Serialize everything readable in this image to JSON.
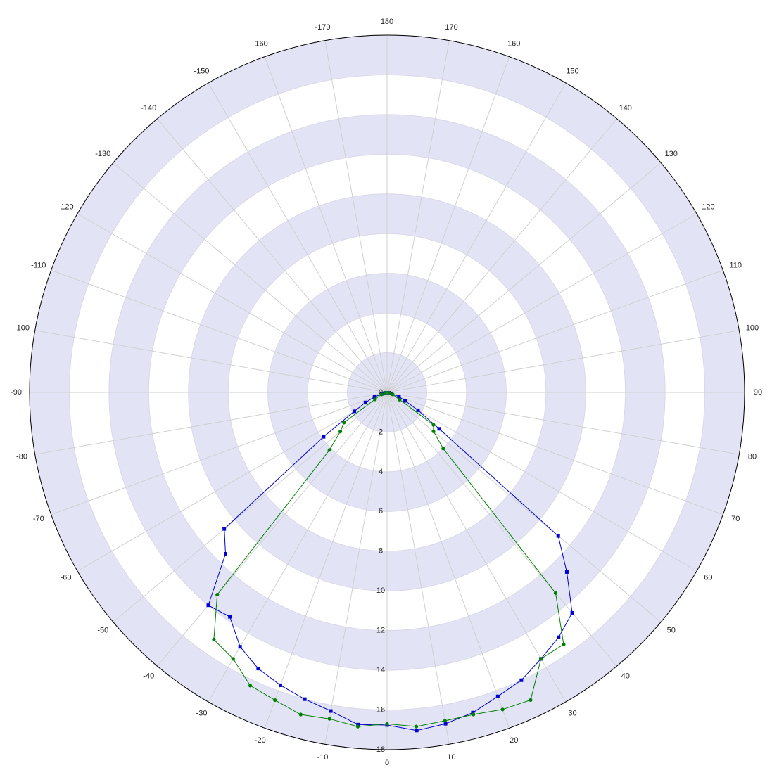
{
  "chart_data": {
    "type": "polar",
    "rlim": [
      0,
      18
    ],
    "rticks": [
      0,
      2,
      4,
      6,
      8,
      10,
      12,
      14,
      16,
      18
    ],
    "thetaticks": [
      -170,
      -160,
      -150,
      -140,
      -130,
      -120,
      -110,
      -100,
      -90,
      -80,
      -70,
      -60,
      -50,
      -40,
      -30,
      -20,
      -10,
      0,
      10,
      20,
      30,
      40,
      50,
      60,
      70,
      80,
      90,
      100,
      110,
      120,
      130,
      140,
      150,
      160,
      170,
      180
    ],
    "band_color": "#e2e4f6",
    "grid": true,
    "series": [
      {
        "color": "#0000cc",
        "marker": "square",
        "x": [
          -80,
          -75,
          -70,
          -65,
          -60,
          -55,
          -50,
          -45,
          -40,
          -35,
          -30,
          -25,
          -20,
          -15,
          -10,
          -5,
          0,
          5,
          10,
          15,
          20,
          25,
          30,
          35,
          40,
          45,
          50,
          55,
          60,
          65,
          70,
          75,
          80
        ],
        "values": [
          0.1,
          0.28,
          0.67,
          1.2,
          1.9,
          3.9,
          10.7,
          11.5,
          14.0,
          13.8,
          14.8,
          15.35,
          15.7,
          16.0,
          16.3,
          16.8,
          16.76,
          17.1,
          16.95,
          16.7,
          16.3,
          16.0,
          15.5,
          15.06,
          14.5,
          12.8,
          11.25,
          3.2,
          1.8,
          1.0,
          0.64,
          0.2,
          0.1
        ]
      },
      {
        "color": "#008000",
        "marker": "circle",
        "x": [
          -80,
          -70,
          -60,
          -55,
          -50,
          -45,
          -40,
          -35,
          -30,
          -25,
          -20,
          -15,
          -10,
          -5,
          0,
          5,
          10,
          15,
          20,
          25,
          30,
          35,
          40,
          45,
          50,
          55,
          60,
          70,
          80
        ],
        "values": [
          0.1,
          0.3,
          0.7,
          2.65,
          3.07,
          4.1,
          13.3,
          15.2,
          15.5,
          16.3,
          16.5,
          16.8,
          16.7,
          16.9,
          16.7,
          16.9,
          16.8,
          16.8,
          17.0,
          17.1,
          15.5,
          15.5,
          13.2,
          4.0,
          3.05,
          2.85,
          0.73,
          0.3,
          0.1
        ]
      }
    ]
  }
}
